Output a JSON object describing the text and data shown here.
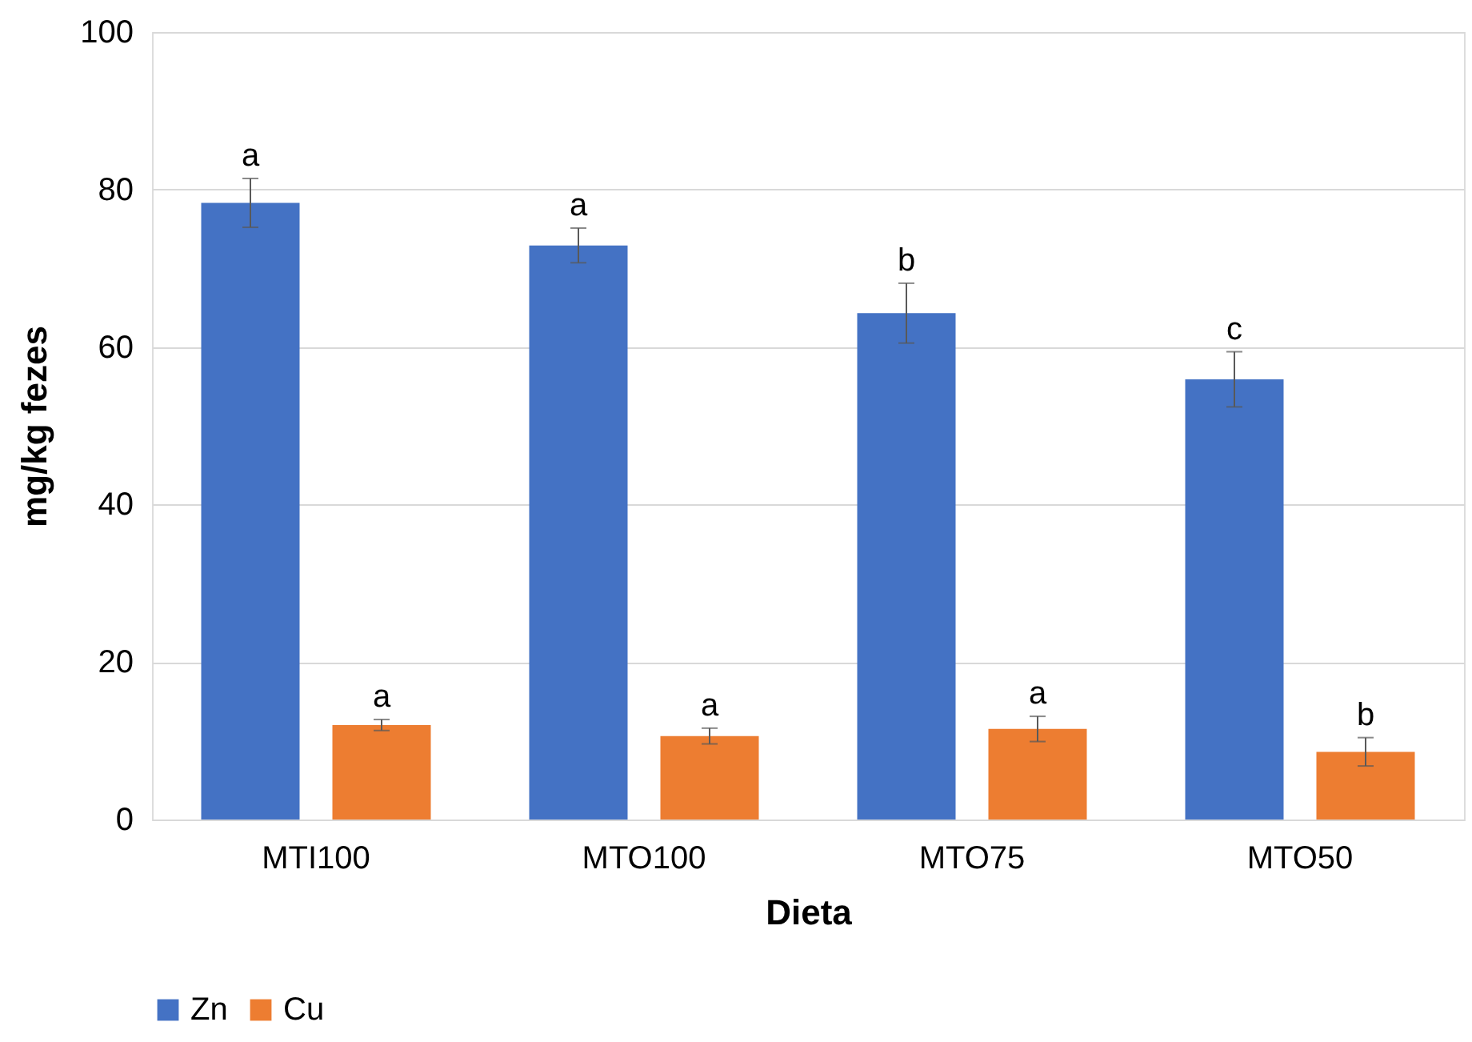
{
  "chart_data": {
    "type": "bar",
    "xlabel": "Dieta",
    "ylabel": "mg/kg fezes",
    "categories": [
      "MTI100",
      "MTO100",
      "MTO75",
      "MTO50"
    ],
    "series": [
      {
        "name": "Zn",
        "color": "#4472c4",
        "values": [
          78.3,
          72.9,
          64.3,
          55.9
        ],
        "errors": [
          3.1,
          2.2,
          3.8,
          3.5
        ],
        "value_labels": [
          "a",
          "a",
          "b",
          "c"
        ]
      },
      {
        "name": "Cu",
        "color": "#ed7d31",
        "values": [
          12.0,
          10.6,
          11.5,
          8.6
        ],
        "errors": [
          0.7,
          1.0,
          1.6,
          1.8
        ],
        "value_labels": [
          "a",
          "a",
          "a",
          "b"
        ]
      }
    ],
    "ylim": [
      0,
      100
    ],
    "yticks": [
      0,
      20,
      40,
      60,
      80,
      100
    ],
    "grid": "y",
    "legend": "bottom"
  }
}
